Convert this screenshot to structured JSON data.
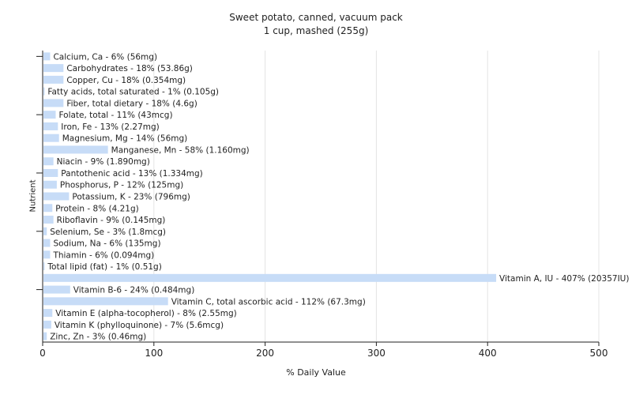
{
  "chart_data": {
    "type": "bar",
    "orientation": "horizontal",
    "title": "Sweet potato, canned, vacuum pack",
    "subtitle": "1 cup, mashed (255g)",
    "xlabel": "% Daily Value",
    "ylabel": "Nutrient",
    "xlim": [
      0,
      500
    ],
    "xticks": [
      "0",
      "100",
      "200",
      "300",
      "400",
      "500"
    ],
    "grid": true,
    "categories": [
      "Calcium, Ca",
      "Carbohydrates",
      "Copper, Cu",
      "Fatty acids, total saturated",
      "Fiber, total dietary",
      "Folate, total",
      "Iron, Fe",
      "Magnesium, Mg",
      "Manganese, Mn",
      "Niacin",
      "Pantothenic acid",
      "Phosphorus, P",
      "Potassium, K",
      "Protein",
      "Riboflavin",
      "Selenium, Se",
      "Sodium, Na",
      "Thiamin",
      "Total lipid (fat)",
      "Vitamin A, IU",
      "Vitamin B-6",
      "Vitamin C, total ascorbic acid",
      "Vitamin E (alpha-tocopherol)",
      "Vitamin K (phylloquinone)",
      "Zinc, Zn"
    ],
    "values": [
      6,
      18,
      18,
      1,
      18,
      11,
      13,
      14,
      58,
      9,
      13,
      12,
      23,
      8,
      9,
      3,
      6,
      6,
      1,
      407,
      24,
      112,
      8,
      7,
      3
    ],
    "labels": [
      "Calcium, Ca - 6% (56mg)",
      "Carbohydrates - 18% (53.86g)",
      "Copper, Cu - 18% (0.354mg)",
      "Fatty acids, total saturated - 1% (0.105g)",
      "Fiber, total dietary - 18% (4.6g)",
      "Folate, total - 11% (43mcg)",
      "Iron, Fe - 13% (2.27mg)",
      "Magnesium, Mg - 14% (56mg)",
      "Manganese, Mn - 58% (1.160mg)",
      "Niacin - 9% (1.890mg)",
      "Pantothenic acid - 13% (1.334mg)",
      "Phosphorus, P - 12% (125mg)",
      "Potassium, K - 23% (796mg)",
      "Protein - 8% (4.21g)",
      "Riboflavin - 9% (0.145mg)",
      "Selenium, Se - 3% (1.8mcg)",
      "Sodium, Na - 6% (135mg)",
      "Thiamin - 6% (0.094mg)",
      "Total lipid (fat) - 1% (0.51g)",
      "Vitamin A, IU - 407% (20357IU)",
      "Vitamin B-6 - 24% (0.484mg)",
      "Vitamin C, total ascorbic acid - 112% (67.3mg)",
      "Vitamin E (alpha-tocopherol) - 8% (2.55mg)",
      "Vitamin K (phylloquinone) - 7% (5.6mcg)",
      "Zinc, Zn - 3% (0.46mg)"
    ],
    "colors": {
      "bar": "#c7dcf7",
      "grid": "#e4e4e4",
      "axis": "#222222",
      "text": "#222222"
    }
  }
}
